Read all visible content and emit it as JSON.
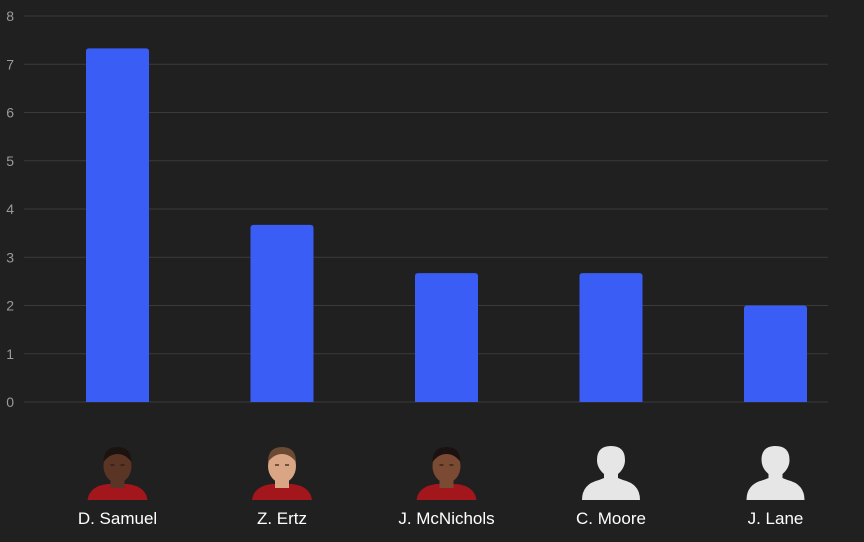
{
  "colors": {
    "background": "#202020",
    "grid": "#3a3a3a",
    "bar": "#3a5ef5",
    "tick_text": "#9a9a9a",
    "label_text": "#ffffff",
    "placeholder_avatar": "#e6e6e6"
  },
  "chart_data": {
    "type": "bar",
    "title": "",
    "xlabel": "",
    "ylabel": "",
    "ylim": [
      0,
      8
    ],
    "yticks": [
      "0",
      "1",
      "2",
      "3",
      "4",
      "5",
      "6",
      "7",
      "8"
    ],
    "grid": true,
    "categories": [
      "D. Samuel",
      "Z. Ertz",
      "J. McNichols",
      "C. Moore",
      "J. Lane"
    ],
    "values": [
      7.33,
      3.67,
      2.67,
      2.67,
      2.0
    ],
    "avatars": [
      {
        "kind": "photo",
        "skin": "#5a3424",
        "hair": "#1c1210",
        "jersey": "#a3161c"
      },
      {
        "kind": "photo",
        "skin": "#d9a584",
        "hair": "#6b4a33",
        "jersey": "#a3161c"
      },
      {
        "kind": "photo",
        "skin": "#7a4a32",
        "hair": "#1a1210",
        "jersey": "#a3161c"
      },
      {
        "kind": "placeholder"
      },
      {
        "kind": "placeholder"
      }
    ]
  }
}
